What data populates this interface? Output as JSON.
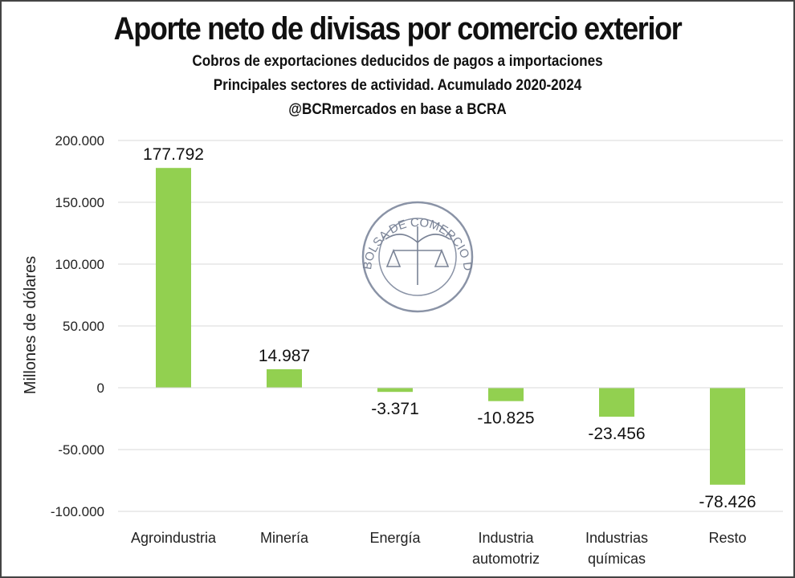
{
  "chart_data": {
    "type": "bar",
    "title": "Aporte neto de divisas por comercio exterior",
    "subtitles": [
      "Cobros de exportaciones deducidos de pagos a importaciones",
      "Principales sectores de actividad. Acumulado 2020-2024",
      "@BCRmercados en base a BCRA"
    ],
    "ylabel": "Millones de dólares",
    "xlabel": "",
    "ylim": [
      -100000,
      200000
    ],
    "yticks": [
      200000,
      150000,
      100000,
      50000,
      0,
      -50000,
      -100000
    ],
    "ytick_labels": [
      "200.000",
      "150.000",
      "100.000",
      "50.000",
      "0",
      "-50.000",
      "-100.000"
    ],
    "categories": [
      [
        "Agroindustria"
      ],
      [
        "Minería"
      ],
      [
        "Energía"
      ],
      [
        "Industria",
        "automotriz"
      ],
      [
        "Industrias",
        "químicas"
      ],
      [
        "Resto"
      ]
    ],
    "values": [
      177792,
      14987,
      -3371,
      -10825,
      -23456,
      -78426
    ],
    "data_labels": [
      "177.792",
      "14.987",
      "-3.371",
      "-10.825",
      "-23.456",
      "-78.426"
    ],
    "grid": true,
    "bar_color": "#92d050",
    "watermark": "BOLSA DE COMERCIO DE ROSARIO"
  }
}
